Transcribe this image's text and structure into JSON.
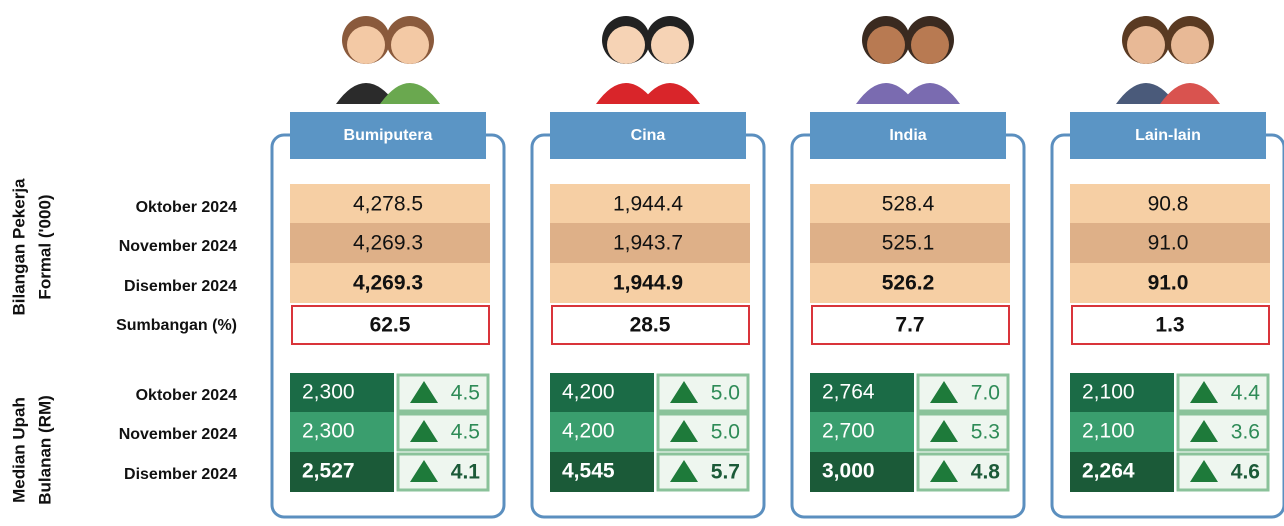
{
  "section_labels": {
    "workers": [
      "Bilangan Pekerja",
      "Formal ('000)"
    ],
    "wages": [
      "Median Upah",
      "Bulanan (RM)"
    ]
  },
  "row_labels": {
    "workers": [
      "Oktober 2024",
      "November 2024",
      "Disember 2024"
    ],
    "contribution": "Sumbangan (%)",
    "wages": [
      "Oktober 2024",
      "November 2024",
      "Disember 2024"
    ]
  },
  "groups": [
    {
      "name": "Bumiputera",
      "workers": [
        "4,278.5",
        "4,269.3",
        "4,269.3"
      ],
      "contribution": "62.5",
      "wages": [
        "2,300",
        "2,300",
        "2,527"
      ],
      "wage_growth": [
        "4.5",
        "4.5",
        "4.1"
      ]
    },
    {
      "name": "Cina",
      "workers": [
        "1,944.4",
        "1,943.7",
        "1,944.9"
      ],
      "contribution": "28.5",
      "wages": [
        "4,200",
        "4,200",
        "4,545"
      ],
      "wage_growth": [
        "5.0",
        "5.0",
        "5.7"
      ]
    },
    {
      "name": "India",
      "workers": [
        "528.4",
        "525.1",
        "526.2"
      ],
      "contribution": "7.7",
      "wages": [
        "2,764",
        "2,700",
        "3,000"
      ],
      "wage_growth": [
        "7.0",
        "5.3",
        "4.8"
      ]
    },
    {
      "name": "Lain-lain",
      "workers": [
        "90.8",
        "91.0",
        "91.0"
      ],
      "contribution": "1.3",
      "wages": [
        "2,100",
        "2,100",
        "2,264"
      ],
      "wage_growth": [
        "4.4",
        "3.6",
        "4.6"
      ]
    }
  ]
}
